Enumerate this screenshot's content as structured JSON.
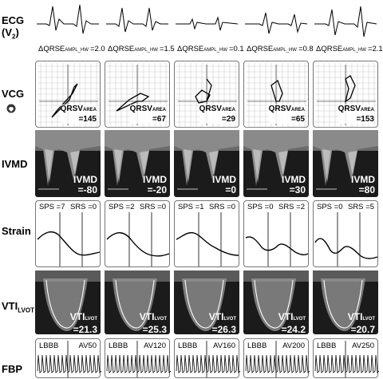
{
  "row_labels": {
    "ecg_main": "ECG",
    "ecg_sub": "(V",
    "ecg_sub_index": "2",
    "ecg_sub_end": ")",
    "vcg": "VCG",
    "ivmd": "IVMD",
    "strain": "Strain",
    "vti_main": "VTI",
    "vti_sub": "LVOT",
    "fbp": "FBP"
  },
  "ecg": [
    {
      "label": "ΔQRSE",
      "sub": "AMPL_HW",
      "value": "=2.0"
    },
    {
      "label": "ΔQRSE",
      "sub": "AMPL_HW",
      "value": "=1.5"
    },
    {
      "label": "ΔQRSE",
      "sub": "AMPL_HW",
      "value": "=0.1"
    },
    {
      "label": "ΔQRSE",
      "sub": "AMPL_HW",
      "value": "=0.8"
    },
    {
      "label": "ΔQRSE",
      "sub": "AMPL_HW",
      "value": "=2.1"
    }
  ],
  "vcg": [
    {
      "label": "QRSV",
      "sub": "AREA",
      "value": "=145"
    },
    {
      "label": "QRSV",
      "sub": "AREA",
      "value": "=67"
    },
    {
      "label": "QRSV",
      "sub": "AREA",
      "value": "=29"
    },
    {
      "label": "QRSV",
      "sub": "AREA",
      "value": "=65"
    },
    {
      "label": "QRSV",
      "sub": "AREA",
      "value": "=153"
    }
  ],
  "ivmd": [
    {
      "label": "IVMD",
      "value": "=-80"
    },
    {
      "label": "IVMD",
      "value": "=-20"
    },
    {
      "label": "IVMD",
      "value": "=0"
    },
    {
      "label": "IVMD",
      "value": "=30"
    },
    {
      "label": "IVMD",
      "value": "=80"
    }
  ],
  "strain": [
    {
      "sps": "SPS =7",
      "srs": "SRS =0"
    },
    {
      "sps": "SPS =2",
      "srs": "SRS =0"
    },
    {
      "sps": "SPS =1",
      "srs": "SRS =0"
    },
    {
      "sps": "SPS =0",
      "srs": "SRS =2"
    },
    {
      "sps": "SPS =0",
      "srs": "SRS =5"
    }
  ],
  "vti": [
    {
      "label": "VTI",
      "sub": "LVOT",
      "value": "=21.3"
    },
    {
      "label": "VTI",
      "sub": "LVOT",
      "value": "=25.3"
    },
    {
      "label": "VTI",
      "sub": "LVOT",
      "value": "=26.3"
    },
    {
      "label": "VTI",
      "sub": "LVOT",
      "value": "=24.2"
    },
    {
      "label": "VTI",
      "sub": "LVOT",
      "value": "=20.7"
    }
  ],
  "fbp": [
    {
      "left": "LBBB",
      "right": "AV50"
    },
    {
      "left": "LBBB",
      "right": "AV120"
    },
    {
      "left": "LBBB",
      "right": "AV160"
    },
    {
      "left": "LBBB",
      "right": "AV200"
    },
    {
      "left": "LBBB",
      "right": "AV250"
    }
  ],
  "colors": {
    "dark_panel": "#1b1b1b",
    "panel_border": "#777777",
    "text": "#000000"
  },
  "icons": {
    "vcg": "heart-lead-icon"
  }
}
